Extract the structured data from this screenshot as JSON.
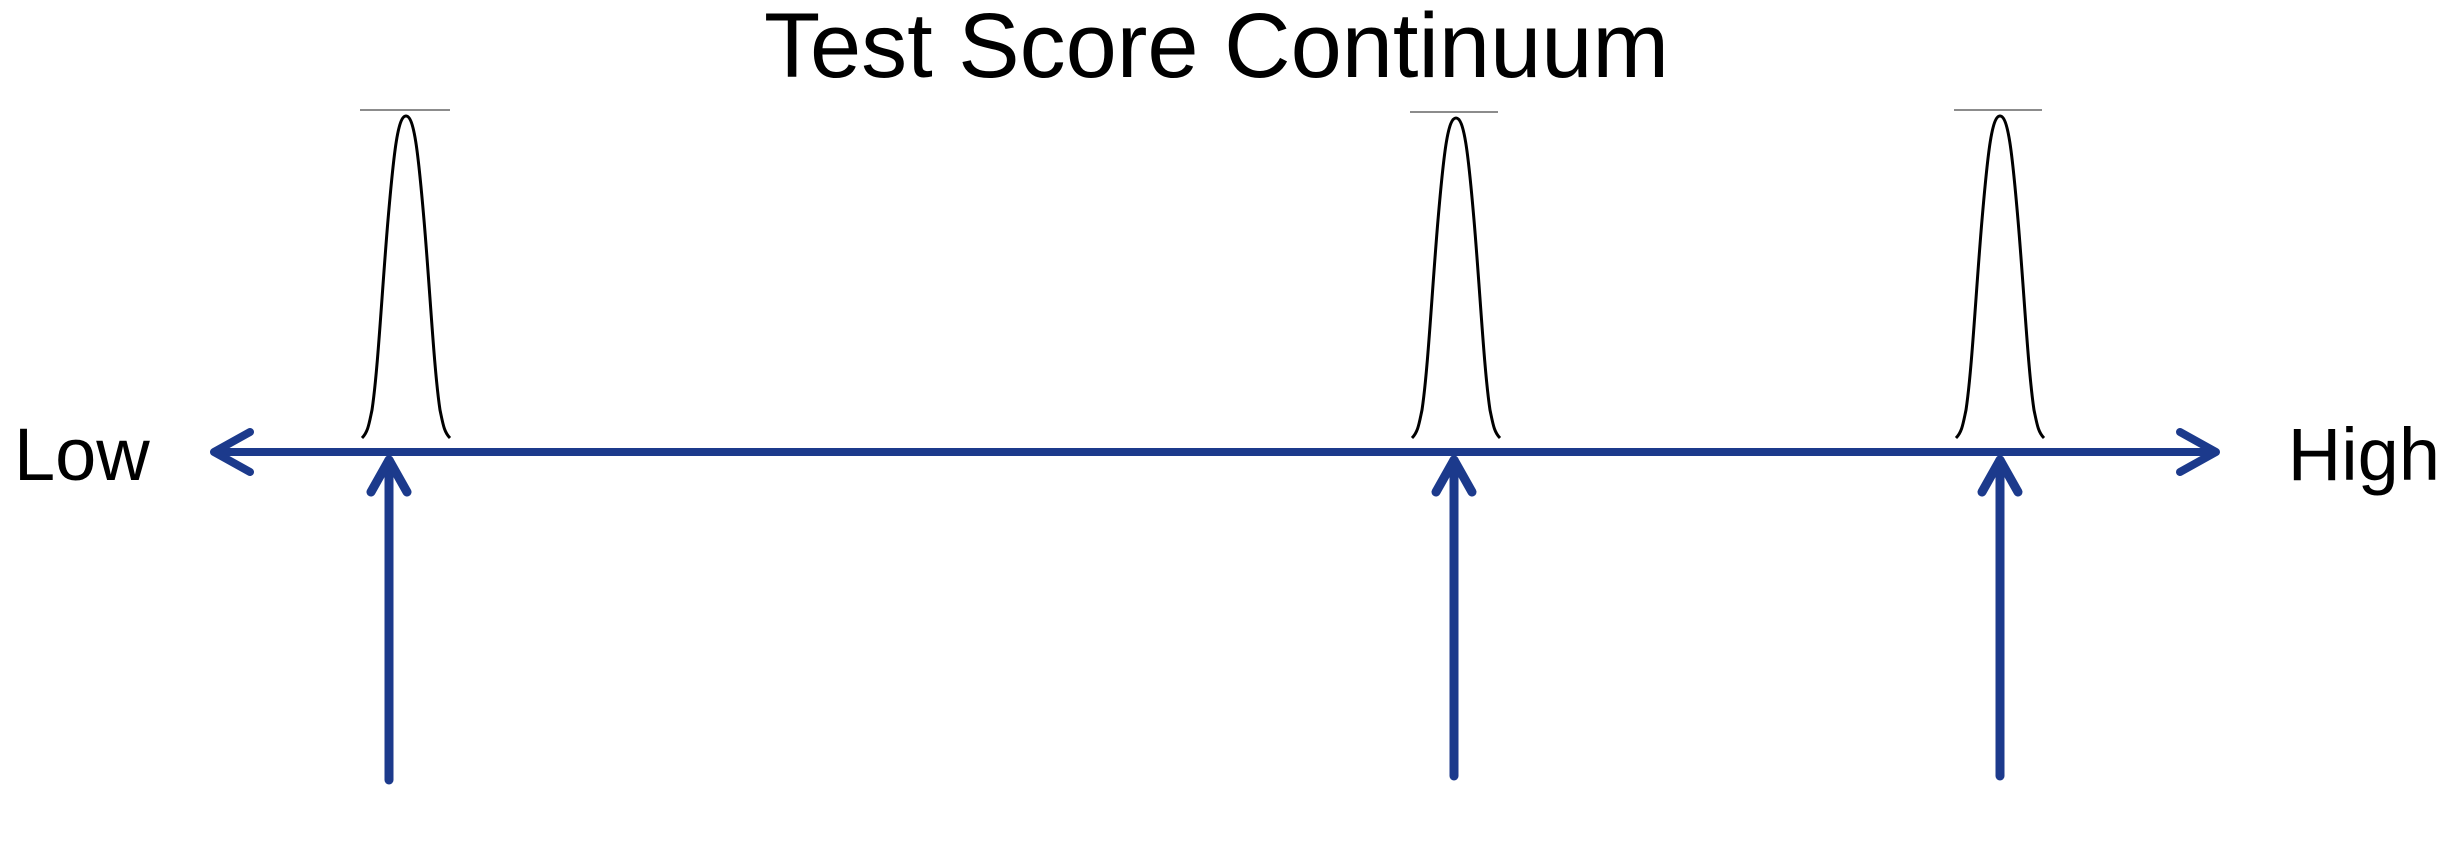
{
  "title": "Test Score Continuum",
  "continuum": {
    "low_label": "Low",
    "high_label": "High"
  },
  "markers": [
    {
      "name": "marker-1"
    },
    {
      "name": "marker-2"
    },
    {
      "name": "marker-3"
    }
  ],
  "colors": {
    "axis": "#1c3a8c",
    "curve": "#000000",
    "cap": "#8c8c8c"
  }
}
